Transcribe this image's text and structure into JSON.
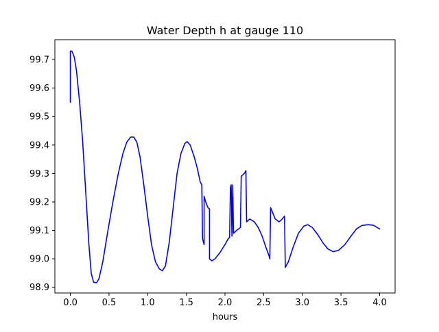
{
  "chart_data": {
    "type": "line",
    "title": "Water Depth h at gauge 110",
    "xlabel": "hours",
    "ylabel": "",
    "xlim": [
      -0.2,
      4.2
    ],
    "ylim": [
      98.88,
      99.77
    ],
    "x_ticks": [
      0.0,
      0.5,
      1.0,
      1.5,
      2.0,
      2.5,
      3.0,
      3.5,
      4.0
    ],
    "x_tick_labels": [
      "0.0",
      "0.5",
      "1.0",
      "1.5",
      "2.0",
      "2.5",
      "3.0",
      "3.5",
      "4.0"
    ],
    "y_ticks": [
      98.9,
      99.0,
      99.1,
      99.2,
      99.3,
      99.4,
      99.5,
      99.6,
      99.7
    ],
    "y_tick_labels": [
      "98.9",
      "99.0",
      "99.1",
      "99.2",
      "99.3",
      "99.4",
      "99.5",
      "99.6",
      "99.7"
    ],
    "grid": false,
    "line_color": "#0000ff",
    "series": [
      {
        "points": [
          [
            0.0,
            99.55
          ],
          [
            0.0,
            99.73
          ],
          [
            0.02,
            99.73
          ],
          [
            0.05,
            99.71
          ],
          [
            0.08,
            99.66
          ],
          [
            0.12,
            99.55
          ],
          [
            0.16,
            99.41
          ],
          [
            0.2,
            99.23
          ],
          [
            0.24,
            99.05
          ],
          [
            0.27,
            98.95
          ],
          [
            0.3,
            98.918
          ],
          [
            0.34,
            98.916
          ],
          [
            0.37,
            98.93
          ],
          [
            0.42,
            98.99
          ],
          [
            0.48,
            99.09
          ],
          [
            0.55,
            99.2
          ],
          [
            0.62,
            99.3
          ],
          [
            0.68,
            99.37
          ],
          [
            0.73,
            99.41
          ],
          [
            0.78,
            99.428
          ],
          [
            0.82,
            99.428
          ],
          [
            0.86,
            99.41
          ],
          [
            0.9,
            99.36
          ],
          [
            0.95,
            99.26
          ],
          [
            1.0,
            99.15
          ],
          [
            1.05,
            99.05
          ],
          [
            1.1,
            98.99
          ],
          [
            1.15,
            98.965
          ],
          [
            1.19,
            98.958
          ],
          [
            1.23,
            98.975
          ],
          [
            1.28,
            99.06
          ],
          [
            1.33,
            99.18
          ],
          [
            1.38,
            99.3
          ],
          [
            1.43,
            99.37
          ],
          [
            1.48,
            99.405
          ],
          [
            1.51,
            99.412
          ],
          [
            1.55,
            99.4
          ],
          [
            1.6,
            99.36
          ],
          [
            1.64,
            99.32
          ],
          [
            1.68,
            99.27
          ],
          [
            1.7,
            99.26
          ],
          [
            1.71,
            99.07
          ],
          [
            1.72,
            99.06
          ],
          [
            1.73,
            99.05
          ],
          [
            1.73,
            99.22
          ],
          [
            1.75,
            99.2
          ],
          [
            1.78,
            99.18
          ],
          [
            1.8,
            99.175
          ],
          [
            1.8,
            99.0
          ],
          [
            1.83,
            98.993
          ],
          [
            1.87,
            99.0
          ],
          [
            1.93,
            99.02
          ],
          [
            2.0,
            99.05
          ],
          [
            2.04,
            99.07
          ],
          [
            2.06,
            99.075
          ],
          [
            2.07,
            99.25
          ],
          [
            2.08,
            99.26
          ],
          [
            2.09,
            99.08
          ],
          [
            2.1,
            99.26
          ],
          [
            2.11,
            99.09
          ],
          [
            2.15,
            99.1
          ],
          [
            2.2,
            99.11
          ],
          [
            2.21,
            99.29
          ],
          [
            2.25,
            99.3
          ],
          [
            2.27,
            99.31
          ],
          [
            2.28,
            99.13
          ],
          [
            2.32,
            99.14
          ],
          [
            2.38,
            99.13
          ],
          [
            2.43,
            99.11
          ],
          [
            2.48,
            99.08
          ],
          [
            2.53,
            99.04
          ],
          [
            2.57,
            99.01
          ],
          [
            2.58,
            99.0
          ],
          [
            2.59,
            99.18
          ],
          [
            2.62,
            99.16
          ],
          [
            2.65,
            99.14
          ],
          [
            2.7,
            99.13
          ],
          [
            2.74,
            99.14
          ],
          [
            2.77,
            99.15
          ],
          [
            2.78,
            98.97
          ],
          [
            2.82,
            98.99
          ],
          [
            2.88,
            99.04
          ],
          [
            2.95,
            99.09
          ],
          [
            3.02,
            99.115
          ],
          [
            3.07,
            99.12
          ],
          [
            3.13,
            99.11
          ],
          [
            3.2,
            99.085
          ],
          [
            3.27,
            99.055
          ],
          [
            3.33,
            99.035
          ],
          [
            3.4,
            99.025
          ],
          [
            3.47,
            99.03
          ],
          [
            3.55,
            99.05
          ],
          [
            3.63,
            99.08
          ],
          [
            3.7,
            99.105
          ],
          [
            3.77,
            99.117
          ],
          [
            3.85,
            99.12
          ],
          [
            3.92,
            99.118
          ],
          [
            3.97,
            99.11
          ],
          [
            4.0,
            99.105
          ]
        ]
      }
    ]
  }
}
